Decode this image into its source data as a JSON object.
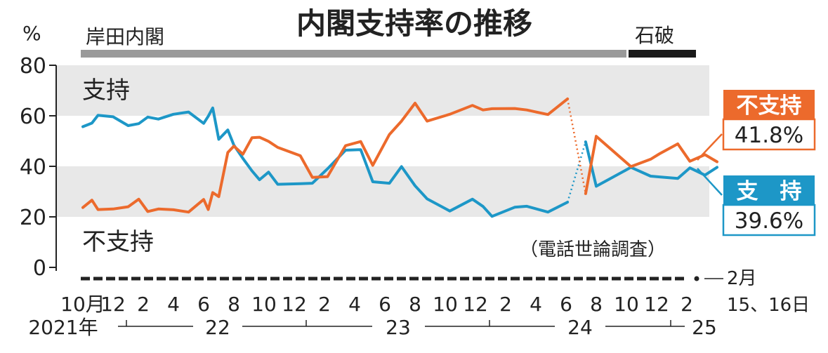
{
  "title": "内閣支持率の推移",
  "unit": "%",
  "cabinets": [
    {
      "label": "岸田内閣",
      "color": "#9a9a9a"
    },
    {
      "label": "石破",
      "color": "#1a1a1a"
    }
  ],
  "series_labels": {
    "approve": "支持",
    "disapprove": "不支持"
  },
  "note": "（電話世論調査）",
  "callouts": {
    "disapprove": {
      "label": "不支持",
      "value": "41.8%",
      "color": "#ec6a2c"
    },
    "approve": {
      "label": "支　持",
      "value": "39.6%",
      "color": "#1d97c7"
    }
  },
  "x_axis": {
    "month_ticks": [
      {
        "label": "10月",
        "m": 0
      },
      {
        "label": "12",
        "m": 2
      },
      {
        "label": "2",
        "m": 4
      },
      {
        "label": "4",
        "m": 6
      },
      {
        "label": "6",
        "m": 8
      },
      {
        "label": "8",
        "m": 10
      },
      {
        "label": "10",
        "m": 12
      },
      {
        "label": "12",
        "m": 14
      },
      {
        "label": "2",
        "m": 16
      },
      {
        "label": "4",
        "m": 18
      },
      {
        "label": "6",
        "m": 20
      },
      {
        "label": "8",
        "m": 22
      },
      {
        "label": "10",
        "m": 24
      },
      {
        "label": "12",
        "m": 26
      },
      {
        "label": "2",
        "m": 28
      },
      {
        "label": "4",
        "m": 30
      },
      {
        "label": "6",
        "m": 32
      },
      {
        "label": "8",
        "m": 34
      },
      {
        "label": "10",
        "m": 36
      },
      {
        "label": "12",
        "m": 38
      },
      {
        "label": "2",
        "m": 40
      }
    ],
    "year_labels": [
      {
        "label": "2021年",
        "m": 0
      },
      {
        "label": "22",
        "m": 8
      },
      {
        "label": "23",
        "m": 20
      },
      {
        "label": "24",
        "m": 32
      },
      {
        "label": "25",
        "m": 40
      }
    ],
    "end_label_1": "2月",
    "end_label_2": "15、16日"
  },
  "chart_data": {
    "type": "line",
    "title": "内閣支持率の推移",
    "ylabel": "%",
    "ylim": [
      0,
      80
    ],
    "yticks": [
      0,
      20,
      40,
      60,
      80
    ],
    "x_unit": "month index from 2021年10月",
    "grid_bands": [
      [
        20,
        40
      ],
      [
        60,
        80
      ]
    ],
    "series": [
      {
        "name": "支持",
        "color": "#1d97c7",
        "x": [
          0,
          0.6,
          1,
          2,
          3,
          3.7,
          4.3,
          5,
          6,
          7,
          8,
          8.3,
          8.6,
          9,
          9.6,
          10,
          10.6,
          11.2,
          11.7,
          12.3,
          12.9,
          14.4,
          15.2,
          16.2,
          17.4,
          18.4,
          19.2,
          20.3,
          21.1,
          22.0,
          22.8,
          24.3,
          25.8,
          26.5,
          27.1,
          28.6,
          29.4,
          30.8,
          32.1,
          33.3,
          34.0,
          36.3,
          37.6,
          38.2,
          39.4,
          40.2,
          41.2,
          42.0
        ],
        "y": [
          55.7,
          57.1,
          60.2,
          59.6,
          56.1,
          56.9,
          59.5,
          58.7,
          60.6,
          61.5,
          57.0,
          59.8,
          63.1,
          50.7,
          54.4,
          48.4,
          43.1,
          38.2,
          34.7,
          37.7,
          32.9,
          33.1,
          33.3,
          39.0,
          46.4,
          46.6,
          33.9,
          33.3,
          39.9,
          32.3,
          27.1,
          22.3,
          27.0,
          24.1,
          20.2,
          23.8,
          24.2,
          21.9,
          25.8,
          49.7,
          32.1,
          39.6,
          36.1,
          35.8,
          35.2,
          39.4,
          36.5,
          39.6
        ]
      },
      {
        "name": "不支持",
        "color": "#ec6a2c",
        "x": [
          0,
          0.6,
          1,
          2,
          3,
          3.7,
          4.3,
          5,
          6,
          7,
          8,
          8.3,
          8.6,
          9,
          9.6,
          10,
          10.6,
          11.2,
          11.7,
          12.3,
          12.9,
          14.4,
          15.2,
          16.2,
          17.4,
          18.4,
          19.2,
          20.3,
          21.1,
          22.0,
          22.8,
          24.3,
          25.8,
          26.5,
          27.1,
          28.6,
          29.4,
          30.8,
          32.1,
          33.3,
          34.0,
          36.3,
          37.6,
          38.2,
          39.4,
          40.2,
          41.2,
          42.0
        ],
        "y": [
          23.7,
          26.6,
          22.9,
          23.1,
          24.0,
          27.0,
          22.1,
          23.1,
          22.8,
          21.9,
          26.9,
          22.9,
          29.6,
          28.0,
          45.5,
          48.0,
          44.8,
          51.3,
          51.5,
          49.9,
          47.5,
          44.2,
          35.6,
          35.9,
          48.2,
          49.8,
          40.4,
          52.6,
          57.9,
          65.0,
          57.9,
          60.6,
          64.1,
          62.3,
          62.8,
          62.9,
          62.3,
          60.5,
          66.7,
          29.2,
          51.9,
          39.9,
          42.8,
          45.0,
          48.9,
          42.0,
          44.6,
          41.8
        ]
      }
    ],
    "dotted_segment_after_index": 38
  }
}
